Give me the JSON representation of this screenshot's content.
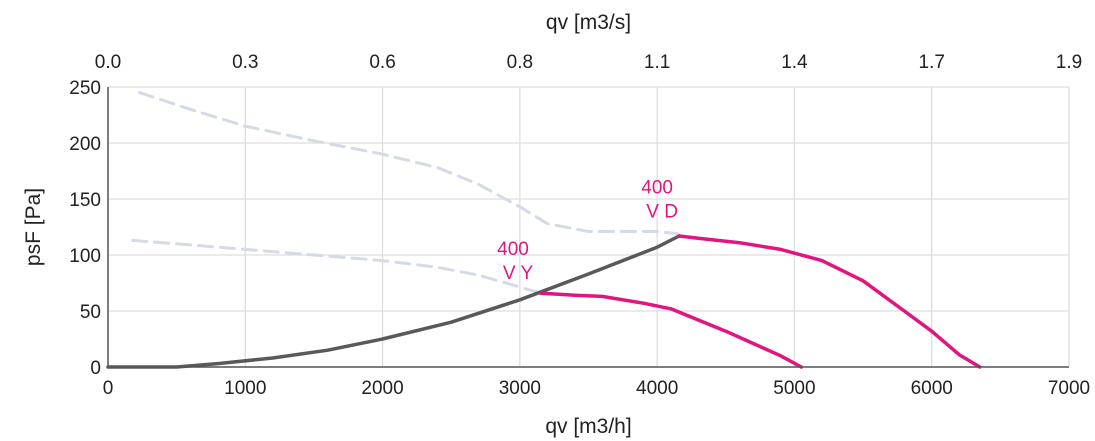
{
  "chart_data": {
    "type": "line",
    "xlabel": "qv [m3/h]",
    "x2label": "qv [m3/s]",
    "ylabel": "psF [Pa]",
    "xlim": [
      0,
      7000
    ],
    "ylim": [
      0,
      250
    ],
    "x_ticks": [
      "0",
      "1000",
      "2000",
      "3000",
      "4000",
      "5000",
      "6000",
      "7000"
    ],
    "x_tick_values": [
      0,
      1000,
      2000,
      3000,
      4000,
      5000,
      6000,
      7000
    ],
    "x2_ticks": [
      "0.0",
      "0.3",
      "0.6",
      "0.8",
      "1.1",
      "1.4",
      "1.7",
      "1.9"
    ],
    "y_ticks": [
      "0",
      "50",
      "100",
      "150",
      "200",
      "250"
    ],
    "y_tick_values": [
      0,
      50,
      100,
      150,
      200,
      250
    ],
    "grid": true,
    "colors": {
      "fan_curve": "#e0157f",
      "system_curve": "#595959",
      "dashed": "#d4dae6",
      "grid": "#dddddd",
      "axis": "#555555"
    },
    "series": [
      {
        "style": "dashed",
        "x": [
          230,
          600,
          1000,
          1500,
          2000,
          2400,
          2700,
          3000,
          3200,
          3500,
          4000,
          4150
        ],
        "y": [
          245,
          230,
          215,
          202,
          190,
          178,
          163,
          143,
          128,
          121,
          121,
          119
        ]
      },
      {
        "style": "dashed",
        "x": [
          180,
          600,
          1000,
          1500,
          2000,
          2400,
          2700,
          2900,
          3150
        ],
        "y": [
          113,
          109,
          105,
          100,
          95,
          89,
          82,
          75,
          66
        ]
      },
      {
        "style": "system",
        "x": [
          0,
          500,
          800,
          1200,
          1600,
          2000,
          2500,
          3000,
          3500,
          4000,
          4160
        ],
        "y": [
          0,
          0,
          3,
          8,
          15,
          25,
          40,
          60,
          83,
          107,
          117
        ]
      },
      {
        "style": "fan",
        "label_line1": "400",
        "label_line2": "V D",
        "label_x": 4000,
        "label_y": 155,
        "x": [
          4160,
          4300,
          4600,
          4900,
          5200,
          5500,
          5800,
          6000,
          6200,
          6350
        ],
        "y": [
          117,
          115,
          111,
          105,
          95,
          77,
          50,
          32,
          11,
          0
        ]
      },
      {
        "style": "fan",
        "label_line1": "400",
        "label_line2": "V Y",
        "label_x": 2950,
        "label_y": 100,
        "x": [
          3150,
          3400,
          3600,
          3900,
          4100,
          4300,
          4500,
          4700,
          4900,
          5050
        ],
        "y": [
          66,
          64,
          63,
          57,
          52,
          42,
          32,
          21,
          10,
          0
        ]
      }
    ]
  }
}
